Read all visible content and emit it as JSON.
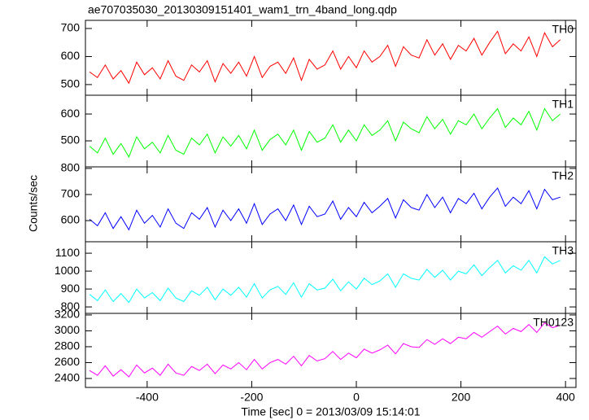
{
  "chart_data": [
    {
      "type": "line",
      "title": "ae707035030_20130309151401_wam1_trn_4band_long.qdp",
      "name": "TH0",
      "color": "#ff0000",
      "x": [
        -510,
        -495,
        -480,
        -465,
        -450,
        -435,
        -420,
        -405,
        -390,
        -375,
        -360,
        -345,
        -330,
        -315,
        -300,
        -285,
        -270,
        -255,
        -240,
        -225,
        -210,
        -195,
        -180,
        -165,
        -150,
        -135,
        -120,
        -105,
        -90,
        -75,
        -60,
        -45,
        -30,
        -15,
        0,
        15,
        30,
        45,
        60,
        75,
        90,
        105,
        120,
        135,
        150,
        165,
        180,
        195,
        210,
        225,
        240,
        255,
        270,
        285,
        300,
        315,
        330,
        345,
        360,
        375,
        390
      ],
      "values": [
        545,
        525,
        570,
        520,
        550,
        505,
        580,
        535,
        560,
        520,
        585,
        530,
        515,
        570,
        545,
        585,
        510,
        575,
        540,
        580,
        530,
        600,
        525,
        565,
        580,
        540,
        595,
        515,
        590,
        555,
        570,
        620,
        555,
        600,
        560,
        620,
        580,
        600,
        640,
        565,
        635,
        605,
        595,
        660,
        605,
        645,
        590,
        640,
        620,
        665,
        605,
        650,
        690,
        610,
        645,
        620,
        670,
        600,
        685,
        635,
        660
      ],
      "xlim": [
        -518,
        420
      ],
      "ylim": [
        462,
        729
      ],
      "yticks": [
        500,
        600,
        700
      ]
    },
    {
      "type": "line",
      "name": "TH1",
      "color": "#00ff00",
      "x": [
        -510,
        -495,
        -480,
        -465,
        -450,
        -435,
        -420,
        -405,
        -390,
        -375,
        -360,
        -345,
        -330,
        -315,
        -300,
        -285,
        -270,
        -255,
        -240,
        -225,
        -210,
        -195,
        -180,
        -165,
        -150,
        -135,
        -120,
        -105,
        -90,
        -75,
        -60,
        -45,
        -30,
        -15,
        0,
        15,
        30,
        45,
        60,
        75,
        90,
        105,
        120,
        135,
        150,
        165,
        180,
        195,
        210,
        225,
        240,
        255,
        270,
        285,
        300,
        315,
        330,
        345,
        360,
        375,
        390
      ],
      "values": [
        480,
        455,
        510,
        450,
        490,
        440,
        515,
        470,
        495,
        455,
        520,
        465,
        450,
        510,
        485,
        525,
        455,
        515,
        480,
        520,
        470,
        540,
        465,
        505,
        525,
        485,
        540,
        465,
        535,
        495,
        510,
        560,
        495,
        540,
        500,
        560,
        520,
        540,
        575,
        500,
        570,
        545,
        530,
        590,
        545,
        580,
        525,
        575,
        560,
        600,
        545,
        585,
        620,
        550,
        585,
        560,
        610,
        540,
        620,
        575,
        600
      ],
      "xlim": [
        -518,
        420
      ],
      "ylim": [
        403,
        670
      ],
      "yticks": [
        500,
        600
      ]
    },
    {
      "type": "line",
      "name": "TH2",
      "color": "#0000ff",
      "ylabel": "Counts/sec",
      "x": [
        -510,
        -495,
        -480,
        -465,
        -450,
        -435,
        -420,
        -405,
        -390,
        -375,
        -360,
        -345,
        -330,
        -315,
        -300,
        -285,
        -270,
        -255,
        -240,
        -225,
        -210,
        -195,
        -180,
        -165,
        -150,
        -135,
        -120,
        -105,
        -90,
        -75,
        -60,
        -45,
        -30,
        -15,
        0,
        15,
        30,
        45,
        60,
        75,
        90,
        105,
        120,
        135,
        150,
        165,
        180,
        195,
        210,
        225,
        240,
        255,
        270,
        285,
        300,
        315,
        330,
        345,
        360,
        375,
        390
      ],
      "values": [
        605,
        580,
        630,
        570,
        615,
        565,
        640,
        590,
        620,
        575,
        645,
        590,
        570,
        630,
        605,
        650,
        575,
        640,
        600,
        645,
        590,
        665,
        585,
        625,
        645,
        600,
        660,
        585,
        655,
        615,
        625,
        675,
        605,
        650,
        615,
        670,
        630,
        655,
        685,
        610,
        680,
        650,
        640,
        700,
        650,
        690,
        630,
        685,
        665,
        705,
        645,
        690,
        725,
        655,
        690,
        665,
        715,
        645,
        720,
        680,
        690
      ],
      "xlim": [
        -518,
        420
      ],
      "ylim": [
        519,
        806
      ],
      "yticks": [
        600,
        700,
        800
      ]
    },
    {
      "type": "line",
      "name": "TH3",
      "color": "#00ffff",
      "x": [
        -510,
        -495,
        -480,
        -465,
        -450,
        -435,
        -420,
        -405,
        -390,
        -375,
        -360,
        -345,
        -330,
        -315,
        -300,
        -285,
        -270,
        -255,
        -240,
        -225,
        -210,
        -195,
        -180,
        -165,
        -150,
        -135,
        -120,
        -105,
        -90,
        -75,
        -60,
        -45,
        -30,
        -15,
        0,
        15,
        30,
        45,
        60,
        75,
        90,
        105,
        120,
        135,
        150,
        165,
        180,
        195,
        210,
        225,
        240,
        255,
        270,
        285,
        300,
        315,
        330,
        345,
        360,
        375,
        390
      ],
      "values": [
        870,
        835,
        895,
        830,
        875,
        825,
        900,
        850,
        880,
        835,
        905,
        850,
        830,
        890,
        865,
        910,
        840,
        900,
        865,
        910,
        855,
        930,
        850,
        895,
        915,
        870,
        935,
        855,
        930,
        895,
        905,
        955,
        890,
        940,
        900,
        960,
        925,
        945,
        985,
        910,
        985,
        960,
        950,
        1010,
        965,
        1005,
        950,
        1000,
        985,
        1035,
        975,
        1020,
        1060,
        990,
        1030,
        1005,
        1060,
        990,
        1080,
        1040,
        1060
      ],
      "xlim": [
        -518,
        420
      ],
      "ylim": [
        764,
        1164
      ],
      "yticks": [
        800,
        900,
        1000,
        1100
      ]
    },
    {
      "type": "line",
      "name": "TH0123",
      "color": "#ff00ff",
      "xlabel": "Time [sec] 0 = 2013/03/09 15:14:01",
      "x": [
        -510,
        -495,
        -480,
        -465,
        -450,
        -435,
        -420,
        -405,
        -390,
        -375,
        -360,
        -345,
        -330,
        -315,
        -300,
        -285,
        -270,
        -255,
        -240,
        -225,
        -210,
        -195,
        -180,
        -165,
        -150,
        -135,
        -120,
        -105,
        -90,
        -75,
        -60,
        -45,
        -30,
        -15,
        0,
        15,
        30,
        45,
        60,
        75,
        90,
        105,
        120,
        135,
        150,
        165,
        180,
        195,
        210,
        225,
        240,
        255,
        270,
        285,
        300,
        315,
        330,
        345,
        360,
        375,
        390
      ],
      "values": [
        2500,
        2440,
        2560,
        2430,
        2510,
        2420,
        2570,
        2470,
        2530,
        2440,
        2580,
        2470,
        2440,
        2550,
        2500,
        2580,
        2460,
        2570,
        2520,
        2600,
        2510,
        2640,
        2520,
        2600,
        2640,
        2580,
        2680,
        2560,
        2690,
        2620,
        2650,
        2740,
        2640,
        2720,
        2660,
        2770,
        2720,
        2760,
        2820,
        2710,
        2840,
        2800,
        2790,
        2890,
        2830,
        2900,
        2840,
        2920,
        2900,
        2980,
        2920,
        2990,
        3060,
        2960,
        3030,
        2990,
        3080,
        2980,
        3100,
        3040,
        3070
      ],
      "xlim": [
        -518,
        420
      ],
      "ylim": [
        2287,
        3220
      ],
      "yticks": [
        2400,
        2600,
        2800,
        3000,
        3200
      ],
      "xticks": [
        -400,
        -200,
        0,
        200,
        400
      ]
    }
  ]
}
